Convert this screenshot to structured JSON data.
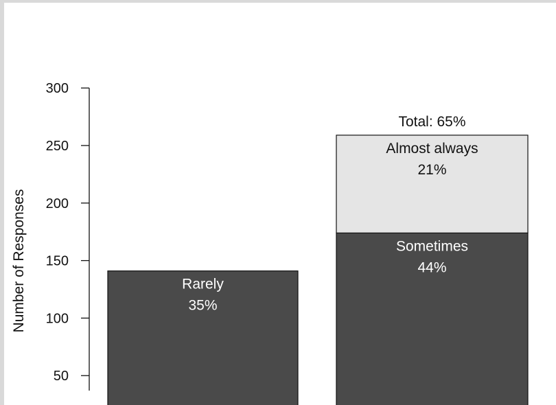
{
  "chart_data": {
    "type": "bar",
    "stacked": true,
    "ylabel": "Number of Responses",
    "xlabel": "",
    "title": "",
    "yticks": [
      50,
      100,
      150,
      200,
      250,
      300
    ],
    "ylim_visible": [
      37,
      312
    ],
    "bars": [
      {
        "segments": [
          {
            "value": 141,
            "label": "Rarely",
            "percent": "35%",
            "color": "#4a4a4a",
            "text_color": "#ffffff"
          }
        ],
        "total_label": ""
      },
      {
        "segments": [
          {
            "value": 174,
            "label": "Sometimes",
            "percent": "44%",
            "color": "#4a4a4a",
            "text_color": "#ffffff"
          },
          {
            "value": 85,
            "label": "Almost always",
            "percent": "21%",
            "color": "#e5e5e5",
            "text_color": "#111111"
          }
        ],
        "total_label": "Total: 65%"
      }
    ]
  }
}
